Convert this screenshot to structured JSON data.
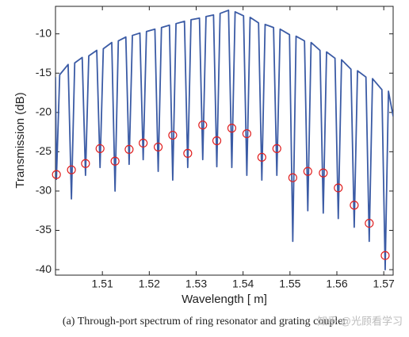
{
  "chart_data": {
    "type": "line",
    "xlabel": "Wavelength [ m]",
    "ylabel": "Transmission (dB)",
    "caption": "(a) Through-port spectrum of ring resonator and grating coupler",
    "watermark": "知乎 @光顾看学习",
    "xlim": [
      1.5,
      1.572
    ],
    "ylim": [
      -40.7,
      -6.5
    ],
    "xticks": [
      1.51,
      1.52,
      1.53,
      1.54,
      1.55,
      1.56,
      1.57
    ],
    "yticks": [
      -40,
      -35,
      -30,
      -25,
      -20,
      -15,
      -10
    ],
    "series": [
      {
        "color": "#3b5ba5",
        "marker": "none",
        "x": [
          1.5,
          1.5002,
          1.5009,
          1.5027,
          1.5034,
          1.5041,
          1.5057,
          1.5064,
          1.5071,
          1.5088,
          1.5095,
          1.5102,
          1.512,
          1.5127,
          1.5134,
          1.515,
          1.5157,
          1.5164,
          1.518,
          1.5187,
          1.5194,
          1.5212,
          1.5219,
          1.5226,
          1.5243,
          1.525,
          1.5257,
          1.5275,
          1.5282,
          1.5289,
          1.5307,
          1.5314,
          1.5321,
          1.5337,
          1.5344,
          1.5351,
          1.5369,
          1.5376,
          1.5383,
          1.5401,
          1.5408,
          1.5415,
          1.5433,
          1.544,
          1.5447,
          1.5465,
          1.5472,
          1.5479,
          1.5499,
          1.5506,
          1.5513,
          1.5531,
          1.5538,
          1.5545,
          1.5564,
          1.5571,
          1.5578,
          1.5596,
          1.5603,
          1.561,
          1.563,
          1.5637,
          1.5644,
          1.5662,
          1.5669,
          1.5676,
          1.5696,
          1.5703,
          1.571,
          1.572
        ],
        "values": [
          -15.5,
          -28.5,
          -15.2,
          -13.9,
          -31.0,
          -13.7,
          -13.0,
          -28.0,
          -12.8,
          -12.1,
          -27.0,
          -11.9,
          -11.1,
          -30.0,
          -10.9,
          -10.4,
          -26.6,
          -10.2,
          -9.9,
          -26.0,
          -9.7,
          -9.4,
          -27.5,
          -9.2,
          -8.9,
          -28.6,
          -8.7,
          -8.4,
          -27.0,
          -8.2,
          -8.0,
          -26.0,
          -7.8,
          -7.6,
          -26.9,
          -7.4,
          -7.0,
          -27.0,
          -7.2,
          -7.7,
          -28.0,
          -7.9,
          -8.6,
          -28.6,
          -8.8,
          -9.2,
          -28.0,
          -9.4,
          -10.1,
          -36.4,
          -10.3,
          -10.9,
          -32.5,
          -11.1,
          -12.1,
          -32.8,
          -12.3,
          -13.1,
          -33.5,
          -13.3,
          -14.5,
          -34.6,
          -14.7,
          -15.5,
          -36.4,
          -15.7,
          -17.1,
          -40.0,
          -17.3,
          -20.5
        ]
      },
      {
        "color": "#e02020",
        "marker": "circle",
        "x": [
          1.5002,
          1.5034,
          1.5064,
          1.5095,
          1.5127,
          1.5157,
          1.5187,
          1.5219,
          1.525,
          1.5282,
          1.5314,
          1.5344,
          1.5376,
          1.5408,
          1.544,
          1.5472,
          1.5506,
          1.5538,
          1.5571,
          1.5603,
          1.5637,
          1.5669,
          1.5703
        ],
        "values": [
          -27.9,
          -27.3,
          -26.5,
          -24.6,
          -26.2,
          -24.7,
          -23.9,
          -24.4,
          -22.9,
          -25.2,
          -21.6,
          -23.6,
          -22.0,
          -22.7,
          -25.7,
          -24.6,
          -28.3,
          -27.5,
          -27.7,
          -29.6,
          -31.8,
          -34.1,
          -38.2
        ]
      }
    ]
  }
}
